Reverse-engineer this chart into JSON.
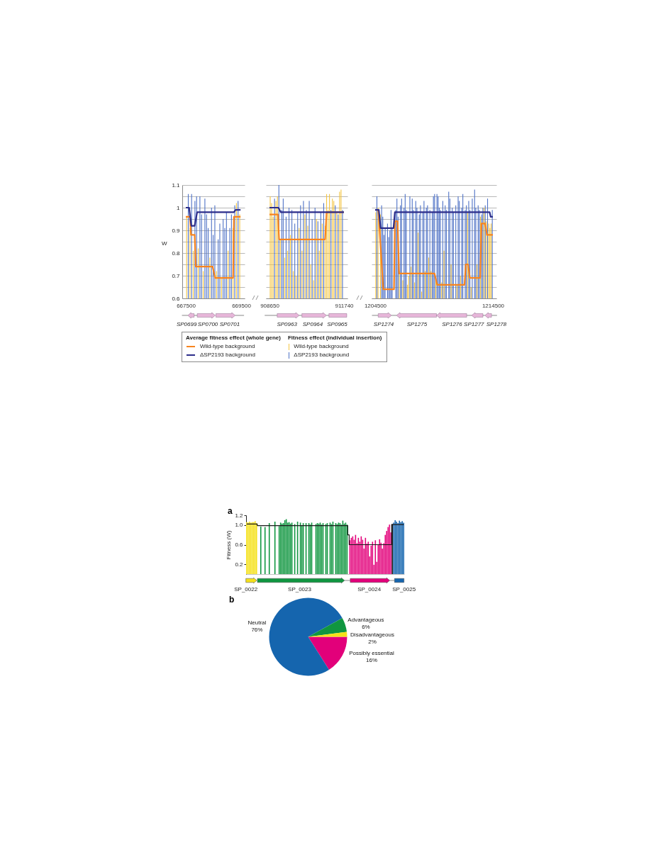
{
  "chart_data": [
    {
      "type": "bar",
      "ylabel": "W",
      "xlim": [
        667500,
        669500
      ],
      "xticks": [
        667500,
        669500
      ],
      "ylim": [
        0.6,
        1.1
      ],
      "yticks": [
        0.6,
        {
          "value": 0.65,
          "label": null
        },
        0.7,
        {
          "value": 0.75,
          "label": null
        },
        0.8,
        {
          "value": 0.85,
          "label": null
        },
        0.9,
        {
          "value": 0.95,
          "label": null
        },
        1,
        {
          "value": 1.05,
          "label": null
        },
        1.1
      ],
      "grid": "y",
      "legend": "bottom",
      "legend_title": "Average fitness effect (whole gene)",
      "annotations": [
        "SP0699",
        "SP0700",
        "SP0701",
        "Fitness effect (individual insertion)"
      ],
      "series": [
        {
          "name": "Wild-type background",
          "type": "bar",
          "color": "#f4c542",
          "x": [
            667530,
            667650,
            667770,
            667950,
            668130,
            668370,
            668610,
            668790,
            669030,
            669210,
            669330,
            669450
          ],
          "values": [
            0.96,
            0.91,
            0.81,
            0.82,
            0.72,
            0.78,
            0.72,
            0.69,
            0.81,
            0.91,
            1.02,
            0.97
          ]
        },
        {
          "name": "ΔSP2193 background",
          "type": "bar",
          "color": "#4f72c6",
          "x": [
            667590,
            667710,
            667830,
            667890,
            668010,
            668070,
            668190,
            668250,
            668310,
            668430,
            668490,
            668550,
            668670,
            668730,
            668850,
            668910,
            668970,
            669090,
            669150,
            669270,
            669390
          ],
          "values": [
            1.06,
            1.06,
            1.03,
            1.05,
            1.05,
            0.97,
            1.04,
            0.97,
            0.91,
            1.0,
            0.88,
            1.01,
            0.86,
            0.93,
            0.95,
            0.91,
            0.98,
            0.91,
            0.97,
            1.01,
            1.03
          ]
        },
        {
          "name": "Wild-type background",
          "type": "line",
          "color": "#f7841f",
          "x": [
            667500,
            667650,
            667690,
            667820,
            667860,
            668470,
            668560,
            669210,
            669240,
            669480
          ],
          "values": [
            0.96,
            0.96,
            0.88,
            0.88,
            0.74,
            0.74,
            0.69,
            0.69,
            0.96,
            0.96
          ]
        },
        {
          "name": "ΔSP2193 background",
          "type": "line",
          "color": "#2c2d8a",
          "x": [
            667500,
            667620,
            667700,
            667820,
            667910,
            669240,
            669300,
            669480
          ],
          "values": [
            1.0,
            1.0,
            0.92,
            0.92,
            0.98,
            0.98,
            0.99,
            0.99
          ]
        }
      ]
    },
    {
      "type": "bar",
      "xlim": [
        908650,
        911740
      ],
      "xticks": [
        908650,
        911740
      ],
      "ylim": [
        0.6,
        1.1
      ],
      "yticks": [
        0.6,
        {
          "value": 0.65,
          "label": null
        },
        0.7,
        {
          "value": 0.75,
          "label": null
        },
        0.8,
        {
          "value": 0.85,
          "label": null
        },
        0.9,
        {
          "value": 0.95,
          "label": null
        },
        1,
        {
          "value": 1.05,
          "label": null
        },
        1.1
      ],
      "grid": "y",
      "tick_labels": "x",
      "annotations": [
        "SP0963",
        "SP0964",
        "SP0965"
      ],
      "series": [
        {
          "type": "bar",
          "color": "#f4c542",
          "x": [
            908680,
            908740,
            908800,
            908920,
            908980,
            909100,
            909280,
            909400,
            909520,
            909640,
            909760,
            909880,
            910000,
            910120,
            910240,
            910360,
            910480,
            910600,
            910720,
            910840,
            910960,
            911020,
            911080,
            911140,
            911260,
            911320,
            911440,
            911560,
            911620
          ],
          "values": [
            1.05,
            1.02,
            0.96,
            1.03,
            1.05,
            0.86,
            0.78,
            0.81,
            0.88,
            0.72,
            0.7,
            0.91,
            0.81,
            0.97,
            0.92,
            0.75,
            0.68,
            0.95,
            0.81,
            0.93,
            0.92,
            1.06,
            0.99,
            1.06,
            1.04,
            1.03,
            0.98,
            1.07,
            1.08
          ]
        },
        {
          "type": "bar",
          "color": "#4f72c6",
          "x": [
            908860,
            909040,
            909160,
            909220,
            909340,
            909460,
            909580,
            909700,
            909820,
            909940,
            910060,
            910180,
            910300,
            910420,
            910540,
            910660,
            910780,
            910900,
            911200,
            911380,
            911500,
            911680
          ],
          "values": [
            1.04,
            1.1,
            0.99,
            1.04,
            0.96,
            1.0,
            0.99,
            0.93,
            0.98,
            1.01,
            1.03,
            0.99,
            1.03,
            0.95,
            1.0,
            0.94,
            0.98,
            1.02,
            0.99,
            1.01,
            0.97,
            0.99
          ]
        },
        {
          "type": "line",
          "color": "#f7841f",
          "x": [
            908650,
            909000,
            909050,
            910960,
            911020,
            911740
          ],
          "values": [
            0.97,
            0.97,
            0.86,
            0.86,
            0.98,
            0.98
          ]
        },
        {
          "type": "line",
          "color": "#2c2d8a",
          "x": [
            908650,
            909020,
            909120,
            911740
          ],
          "values": [
            1.0,
            1.0,
            0.98,
            0.98
          ]
        }
      ]
    },
    {
      "type": "bar",
      "xlim": [
        1204500,
        1214500
      ],
      "xticks": [
        1204500,
        1214500
      ],
      "ylim": [
        0.6,
        1.1
      ],
      "yticks": [
        0.6,
        {
          "value": 0.65,
          "label": null
        },
        0.7,
        {
          "value": 0.75,
          "label": null
        },
        0.8,
        {
          "value": 0.85,
          "label": null
        },
        0.9,
        {
          "value": 0.95,
          "label": null
        },
        1,
        {
          "value": 1.05,
          "label": null
        },
        1.1
      ],
      "grid": "y",
      "tick_labels": "x",
      "annotations": [
        "SP1274",
        "SP1275",
        "SP1276",
        "SP1277",
        "SP1278"
      ],
      "series": [
        {
          "type": "bar",
          "color": "#f4c542",
          "x": [
            1204550,
            1204750,
            1204950,
            1206550,
            1206850,
            1207250,
            1207350,
            1207550,
            1207850,
            1208150,
            1208450,
            1208750,
            1209050,
            1209250,
            1209650,
            1210150,
            1210350,
            1210950,
            1211450,
            1211750,
            1212350,
            1212650,
            1213150,
            1213450,
            1213750,
            1213950,
            1214150,
            1214250,
            1214350
          ],
          "values": [
            0.98,
            1.0,
            0.97,
            0.72,
            0.68,
            0.66,
            0.7,
            0.74,
            0.67,
            0.89,
            0.63,
            0.72,
            0.78,
            0.72,
            0.68,
            0.67,
            0.81,
            0.75,
            0.66,
            0.7,
            0.98,
            0.65,
            0.75,
            0.96,
            1.0,
            0.94,
            0.93,
            0.91,
            0.93
          ]
        },
        {
          "type": "bar",
          "color": "#4f72c6",
          "x": [
            1204650,
            1205050,
            1205150,
            1205250,
            1205350,
            1205550,
            1205650,
            1205750,
            1205850,
            1205950,
            1206250,
            1206350,
            1206450,
            1206650,
            1206750,
            1206950,
            1207050,
            1207150,
            1207450,
            1207650,
            1207750,
            1207950,
            1208050,
            1208250,
            1208350,
            1208550,
            1208650,
            1208850,
            1208950,
            1209150,
            1209350,
            1209450,
            1209550,
            1209750,
            1209850,
            1209950,
            1210050,
            1210250,
            1210450,
            1210550,
            1210750,
            1210850,
            1211050,
            1211150,
            1211350,
            1211550,
            1211650,
            1211850,
            1211950,
            1212150,
            1212250,
            1212450,
            1212550,
            1212750,
            1212950,
            1213050,
            1213250,
            1213350,
            1213550,
            1213650,
            1213850,
            1214050,
            1214450
          ],
          "values": [
            1.05,
            1.01,
            0.96,
            0.88,
            0.91,
            0.93,
            0.87,
            0.9,
            0.99,
            0.91,
            0.99,
            1.04,
            0.96,
            1.01,
            1.04,
            1.0,
            1.06,
            0.99,
            1.05,
            1.04,
            0.99,
            1.03,
            1.0,
            0.97,
            1.01,
            0.98,
            1.03,
            1.0,
            1.01,
            0.99,
            0.98,
            1.05,
            1.06,
            1.06,
            1.05,
            1.0,
            0.99,
            1.03,
            1.01,
            0.99,
            1.07,
            1.04,
            1.0,
            0.98,
            1.01,
            1.05,
            1.03,
            1.0,
            1.06,
            0.99,
            1.01,
            1.03,
            0.99,
            1.04,
            1.08,
            1.0,
            1.01,
            0.99,
            0.97,
            1.0,
            1.01,
            1.04,
            0.99
          ]
        },
        {
          "type": "line",
          "color": "#f7841f",
          "x": [
            1204500,
            1204770,
            1205190,
            1206100,
            1206180,
            1206410,
            1206530,
            1209540,
            1209770,
            1212090,
            1212200,
            1212390,
            1212540,
            1213420,
            1213530,
            1213840,
            1214000,
            1214500
          ],
          "values": [
            0.99,
            0.99,
            0.64,
            0.64,
            0.94,
            0.94,
            0.71,
            0.71,
            0.66,
            0.66,
            0.75,
            0.75,
            0.69,
            0.69,
            0.93,
            0.93,
            0.88,
            0.88
          ]
        },
        {
          "type": "line",
          "color": "#2c2d8a",
          "x": [
            1204500,
            1204810,
            1204970,
            1206060,
            1206180,
            1214230,
            1214310,
            1214500
          ],
          "values": [
            0.99,
            0.99,
            0.91,
            0.91,
            0.98,
            0.98,
            0.96,
            0.96
          ]
        }
      ]
    },
    {
      "type": "bar",
      "title": "a",
      "ylabel": "Fitness (W)",
      "ylim": [
        0,
        1.2
      ],
      "yticks": [
        0.2,
        0.6,
        {
          "value": 1,
          "label": "1.0"
        },
        1.2
      ],
      "categories": [
        null,
        null,
        null,
        null,
        null,
        null,
        null,
        null,
        null,
        null,
        null,
        null,
        null,
        null,
        null,
        null,
        null,
        null,
        null,
        null,
        null,
        null,
        null,
        null,
        null,
        null,
        null,
        null,
        null,
        null,
        null,
        null,
        null,
        null,
        null,
        null,
        null,
        null,
        null,
        null,
        null,
        null,
        null,
        null,
        null,
        null,
        null,
        null,
        null,
        null,
        null,
        null,
        null,
        null,
        null,
        null,
        null,
        null,
        null,
        null,
        null,
        null,
        null,
        null,
        null,
        null,
        null,
        null,
        null,
        null,
        null,
        null,
        null,
        null,
        null,
        null,
        null,
        null,
        null,
        null,
        null,
        null,
        null,
        null,
        null,
        null,
        null,
        null,
        null,
        null,
        null,
        null,
        null,
        null,
        null,
        null,
        null,
        null,
        null,
        null,
        null,
        null,
        null,
        null,
        null,
        null,
        null,
        null,
        null,
        null,
        null,
        null
      ],
      "annotations": [
        "SP_0022",
        "SP_0023",
        "SP_0024",
        "SP_0025"
      ],
      "series": [
        {
          "type": "bar",
          "colors": [
            "#f5e11a",
            "#f5e11a",
            "#f5e11a",
            "#f5e11a",
            "#f5e11a",
            "#f5e11a",
            "#f5e11a",
            "#f5e11a",
            null,
            null,
            "#109640",
            null,
            null,
            "#109640",
            null,
            null,
            "#109640",
            null,
            null,
            null,
            "#109640",
            null,
            null,
            "#109640",
            "#109640",
            "#109640",
            "#109640",
            "#109640",
            "#109640",
            "#109640",
            "#109640",
            "#109640",
            "#109640",
            null,
            "#109640",
            null,
            "#109640",
            null,
            "#109640",
            "#109640",
            "#109640",
            null,
            "#109640",
            null,
            "#109640",
            "#109640",
            "#109640",
            null,
            null,
            "#109640",
            "#109640",
            "#109640",
            "#109640",
            "#109640",
            "#109640",
            null,
            "#109640",
            "#109640",
            null,
            "#109640",
            "#109640",
            "#109640",
            null,
            "#109640",
            "#109640",
            "#109640",
            "#109640",
            "#109640",
            "#109640",
            "#109640",
            "#109640",
            "#109640",
            null,
            "#e2007a",
            "#e2007a",
            "#e2007a",
            "#e2007a",
            "#e2007a",
            "#e2007a",
            "#e2007a",
            "#e2007a",
            "#e2007a",
            "#e2007a",
            "#e2007a",
            "#e2007a",
            "#e2007a",
            "#e2007a",
            "#e2007a",
            "#e2007a",
            "#e2007a",
            "#e2007a",
            "#e2007a",
            "#e2007a",
            "#e2007a",
            "#e2007a",
            "#e2007a",
            "#e2007a",
            "#e2007a",
            "#e2007a",
            "#e2007a",
            "#e2007a",
            "#e2007a",
            "#e2007a",
            "#111111",
            "#1565ae",
            "#1565ae",
            "#1565ae",
            "#1565ae",
            "#1565ae",
            "#1565ae",
            "#1565ae",
            "#1565ae"
          ],
          "values": [
            1.06,
            1.05,
            1.07,
            1.05,
            1.06,
            1.06,
            1.08,
            1.04,
            null,
            null,
            0.97,
            null,
            null,
            0.96,
            null,
            null,
            1.04,
            null,
            null,
            null,
            1.07,
            null,
            null,
            0.98,
            1.05,
            1.03,
            1.04,
            1.1,
            1.12,
            1.05,
            1.06,
            1.03,
            1.05,
            null,
            1.02,
            null,
            1.07,
            null,
            1.05,
            0.99,
            1.04,
            null,
            1.04,
            null,
            1.04,
            1.01,
            1.05,
            null,
            null,
            1.02,
            1.04,
            1.03,
            1.05,
            1.01,
            1.04,
            null,
            1.02,
            1.04,
            null,
            1.05,
            1.02,
            1.07,
            null,
            1.04,
            1.02,
            1.05,
            1.04,
            1.01,
            1.09,
            1.03,
            1.05,
            1.01,
            null,
            0.69,
            0.74,
            0.77,
            0.7,
            0.8,
            0.63,
            0.74,
            0.66,
            0.77,
            0.7,
            0.52,
            0.74,
            0.62,
            0.66,
            0.36,
            0.58,
            0.66,
            0.19,
            0.69,
            0.25,
            0.6,
            0.71,
            0.64,
            0.52,
            0.63,
            0.8,
            0.88,
            0.96,
            1.01,
            0.85,
            1.02,
            1.05,
            1.1,
            1.07,
            1.04,
            1.09,
            1.06,
            1.08,
            1.05
          ]
        },
        {
          "type": "step",
          "color": "#1a1a1a",
          "values": [
            1.02,
            1.02,
            1.02,
            1.02,
            1.02,
            1.02,
            1.02,
            1.02,
            0.99,
            0.99,
            0.99,
            0.99,
            0.99,
            0.99,
            0.99,
            0.99,
            0.99,
            0.99,
            0.99,
            0.99,
            0.99,
            0.99,
            0.99,
            0.99,
            0.99,
            0.99,
            0.99,
            0.99,
            0.99,
            0.99,
            0.99,
            0.99,
            0.99,
            0.99,
            0.99,
            0.99,
            0.99,
            0.99,
            0.99,
            0.99,
            0.99,
            0.99,
            0.99,
            0.99,
            0.99,
            0.99,
            0.99,
            0.99,
            0.99,
            0.99,
            0.99,
            0.99,
            0.99,
            0.99,
            0.99,
            0.99,
            0.99,
            0.99,
            0.99,
            0.99,
            0.99,
            0.99,
            0.99,
            0.99,
            0.99,
            0.99,
            0.99,
            0.99,
            0.99,
            0.99,
            0.99,
            0.99,
            0.8,
            0.6,
            0.6,
            0.6,
            0.6,
            0.6,
            0.6,
            0.6,
            0.6,
            0.6,
            0.6,
            0.6,
            0.6,
            0.6,
            0.6,
            0.6,
            0.6,
            0.6,
            0.6,
            0.6,
            0.6,
            0.6,
            0.6,
            0.6,
            0.6,
            0.6,
            0.6,
            0.6,
            0.6,
            0.6,
            0.6,
            1.01,
            1.01,
            1.01,
            1.01,
            1.01,
            1.01,
            1.01,
            1.01,
            1.01
          ]
        }
      ]
    },
    {
      "type": "pie",
      "title": "b",
      "categories": [
        "Possibly essential",
        "Neutral",
        "Advantageous",
        "Disadvantageous"
      ],
      "values": [
        16,
        76,
        6,
        2
      ],
      "colors": [
        "#e2007a",
        "#1565ae",
        "#109640",
        "#f5e11a"
      ],
      "value_labels": [
        "16%",
        "76%",
        "6%",
        "2%"
      ]
    }
  ]
}
